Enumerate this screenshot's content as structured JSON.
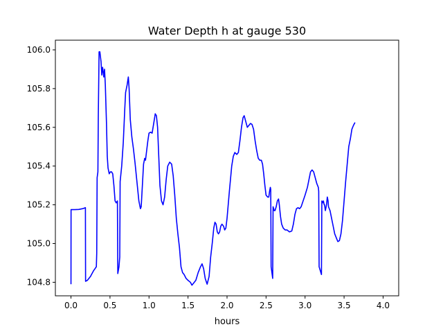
{
  "chart_data": {
    "type": "line",
    "title": "Water Depth h at gauge 530",
    "xlabel": "hours",
    "ylabel": "",
    "xlim": [
      -0.2,
      4.2
    ],
    "ylim": [
      104.73,
      106.05
    ],
    "x_ticks": [
      0.0,
      0.5,
      1.0,
      1.5,
      2.0,
      2.5,
      3.0,
      3.5,
      4.0
    ],
    "x_tick_labels": [
      "0.0",
      "0.5",
      "1.0",
      "1.5",
      "2.0",
      "2.5",
      "3.0",
      "3.5",
      "4.0"
    ],
    "y_ticks": [
      104.8,
      105.0,
      105.2,
      105.4,
      105.6,
      105.8,
      106.0
    ],
    "y_tick_labels": [
      "104.8",
      "105.0",
      "105.2",
      "105.4",
      "105.6",
      "105.8",
      "106.0"
    ],
    "grid": false,
    "legend": "none",
    "series": [
      {
        "color": "#0000ff",
        "points": [
          [
            0.0,
            104.79
          ],
          [
            0.001,
            105.175
          ],
          [
            0.05,
            105.175
          ],
          [
            0.1,
            105.176
          ],
          [
            0.15,
            105.18
          ],
          [
            0.185,
            105.185
          ],
          [
            0.187,
            104.805
          ],
          [
            0.21,
            104.81
          ],
          [
            0.25,
            104.83
          ],
          [
            0.29,
            104.86
          ],
          [
            0.325,
            104.88
          ],
          [
            0.33,
            104.95
          ],
          [
            0.335,
            105.34
          ],
          [
            0.345,
            105.37
          ],
          [
            0.35,
            105.65
          ],
          [
            0.36,
            105.99
          ],
          [
            0.37,
            105.99
          ],
          [
            0.385,
            105.94
          ],
          [
            0.395,
            105.87
          ],
          [
            0.405,
            105.91
          ],
          [
            0.415,
            105.88
          ],
          [
            0.42,
            105.86
          ],
          [
            0.43,
            105.9
          ],
          [
            0.44,
            105.82
          ],
          [
            0.455,
            105.62
          ],
          [
            0.465,
            105.45
          ],
          [
            0.475,
            105.39
          ],
          [
            0.49,
            105.36
          ],
          [
            0.505,
            105.37
          ],
          [
            0.52,
            105.37
          ],
          [
            0.535,
            105.36
          ],
          [
            0.55,
            105.3
          ],
          [
            0.565,
            105.22
          ],
          [
            0.58,
            105.21
          ],
          [
            0.595,
            105.22
          ],
          [
            0.6,
            104.845
          ],
          [
            0.615,
            104.88
          ],
          [
            0.625,
            104.93
          ],
          [
            0.63,
            105.32
          ],
          [
            0.65,
            105.4
          ],
          [
            0.67,
            105.52
          ],
          [
            0.69,
            105.7
          ],
          [
            0.7,
            105.78
          ],
          [
            0.72,
            105.82
          ],
          [
            0.735,
            105.86
          ],
          [
            0.745,
            105.8
          ],
          [
            0.76,
            105.64
          ],
          [
            0.78,
            105.55
          ],
          [
            0.8,
            105.49
          ],
          [
            0.82,
            105.42
          ],
          [
            0.845,
            105.32
          ],
          [
            0.87,
            105.22
          ],
          [
            0.89,
            105.18
          ],
          [
            0.9,
            105.19
          ],
          [
            0.915,
            105.3
          ],
          [
            0.93,
            105.41
          ],
          [
            0.945,
            105.44
          ],
          [
            0.955,
            105.43
          ],
          [
            0.97,
            105.48
          ],
          [
            0.985,
            105.53
          ],
          [
            1.0,
            105.57
          ],
          [
            1.02,
            105.575
          ],
          [
            1.04,
            105.57
          ],
          [
            1.06,
            105.62
          ],
          [
            1.08,
            105.67
          ],
          [
            1.095,
            105.66
          ],
          [
            1.11,
            105.6
          ],
          [
            1.125,
            105.45
          ],
          [
            1.14,
            105.3
          ],
          [
            1.16,
            105.22
          ],
          [
            1.18,
            105.2
          ],
          [
            1.2,
            105.24
          ],
          [
            1.22,
            105.33
          ],
          [
            1.24,
            105.4
          ],
          [
            1.265,
            105.42
          ],
          [
            1.29,
            105.41
          ],
          [
            1.31,
            105.35
          ],
          [
            1.33,
            105.25
          ],
          [
            1.35,
            105.13
          ],
          [
            1.37,
            105.05
          ],
          [
            1.39,
            104.98
          ],
          [
            1.41,
            104.88
          ],
          [
            1.43,
            104.85
          ],
          [
            1.45,
            104.84
          ],
          [
            1.475,
            104.82
          ],
          [
            1.5,
            104.81
          ],
          [
            1.53,
            104.8
          ],
          [
            1.55,
            104.785
          ],
          [
            1.57,
            104.795
          ],
          [
            1.6,
            104.81
          ],
          [
            1.63,
            104.85
          ],
          [
            1.66,
            104.88
          ],
          [
            1.68,
            104.895
          ],
          [
            1.7,
            104.87
          ],
          [
            1.72,
            104.82
          ],
          [
            1.745,
            104.79
          ],
          [
            1.77,
            104.83
          ],
          [
            1.79,
            104.93
          ],
          [
            1.81,
            105.0
          ],
          [
            1.83,
            105.08
          ],
          [
            1.845,
            105.11
          ],
          [
            1.86,
            105.1
          ],
          [
            1.875,
            105.06
          ],
          [
            1.89,
            105.05
          ],
          [
            1.905,
            105.06
          ],
          [
            1.92,
            105.09
          ],
          [
            1.935,
            105.1
          ],
          [
            1.955,
            105.09
          ],
          [
            1.97,
            105.07
          ],
          [
            1.985,
            105.08
          ],
          [
            2.0,
            105.13
          ],
          [
            2.03,
            105.27
          ],
          [
            2.06,
            105.4
          ],
          [
            2.08,
            105.45
          ],
          [
            2.1,
            105.47
          ],
          [
            2.125,
            105.46
          ],
          [
            2.145,
            105.47
          ],
          [
            2.165,
            105.53
          ],
          [
            2.185,
            105.6
          ],
          [
            2.205,
            105.65
          ],
          [
            2.22,
            105.66
          ],
          [
            2.24,
            105.63
          ],
          [
            2.26,
            105.6
          ],
          [
            2.28,
            105.61
          ],
          [
            2.3,
            105.62
          ],
          [
            2.32,
            105.615
          ],
          [
            2.34,
            105.59
          ],
          [
            2.36,
            105.53
          ],
          [
            2.38,
            105.48
          ],
          [
            2.4,
            105.44
          ],
          [
            2.42,
            105.43
          ],
          [
            2.44,
            105.43
          ],
          [
            2.455,
            105.41
          ],
          [
            2.47,
            105.36
          ],
          [
            2.485,
            105.3
          ],
          [
            2.5,
            105.25
          ],
          [
            2.52,
            105.24
          ],
          [
            2.535,
            105.24
          ],
          [
            2.545,
            105.27
          ],
          [
            2.555,
            105.29
          ],
          [
            2.56,
            105.28
          ],
          [
            2.565,
            104.88
          ],
          [
            2.575,
            104.85
          ],
          [
            2.585,
            104.82
          ],
          [
            2.59,
            105.19
          ],
          [
            2.605,
            105.17
          ],
          [
            2.615,
            105.17
          ],
          [
            2.63,
            105.19
          ],
          [
            2.645,
            105.22
          ],
          [
            2.66,
            105.23
          ],
          [
            2.67,
            105.2
          ],
          [
            2.685,
            105.14
          ],
          [
            2.7,
            105.1
          ],
          [
            2.72,
            105.08
          ],
          [
            2.745,
            105.07
          ],
          [
            2.77,
            105.07
          ],
          [
            2.8,
            105.06
          ],
          [
            2.83,
            105.065
          ],
          [
            2.85,
            105.1
          ],
          [
            2.87,
            105.15
          ],
          [
            2.89,
            105.18
          ],
          [
            2.91,
            105.185
          ],
          [
            2.93,
            105.18
          ],
          [
            2.95,
            105.19
          ],
          [
            2.975,
            105.22
          ],
          [
            3.0,
            105.25
          ],
          [
            3.03,
            105.29
          ],
          [
            3.05,
            105.33
          ],
          [
            3.07,
            105.37
          ],
          [
            3.09,
            105.38
          ],
          [
            3.11,
            105.37
          ],
          [
            3.13,
            105.34
          ],
          [
            3.15,
            105.31
          ],
          [
            3.17,
            105.29
          ],
          [
            3.175,
            105.27
          ],
          [
            3.18,
            104.88
          ],
          [
            3.195,
            104.86
          ],
          [
            3.21,
            104.84
          ],
          [
            3.215,
            105.22
          ],
          [
            3.225,
            105.21
          ],
          [
            3.235,
            105.22
          ],
          [
            3.245,
            105.2
          ],
          [
            3.25,
            105.2
          ],
          [
            3.26,
            105.17
          ],
          [
            3.275,
            105.2
          ],
          [
            3.285,
            105.24
          ],
          [
            3.295,
            105.22
          ],
          [
            3.3,
            105.19
          ],
          [
            3.32,
            105.17
          ],
          [
            3.34,
            105.13
          ],
          [
            3.36,
            105.09
          ],
          [
            3.38,
            105.05
          ],
          [
            3.4,
            105.03
          ],
          [
            3.42,
            105.01
          ],
          [
            3.44,
            105.015
          ],
          [
            3.46,
            105.05
          ],
          [
            3.48,
            105.12
          ],
          [
            3.5,
            105.22
          ],
          [
            3.52,
            105.32
          ],
          [
            3.54,
            105.41
          ],
          [
            3.56,
            105.5
          ],
          [
            3.58,
            105.54
          ],
          [
            3.6,
            105.59
          ],
          [
            3.62,
            105.61
          ],
          [
            3.64,
            105.625
          ]
        ]
      }
    ]
  }
}
